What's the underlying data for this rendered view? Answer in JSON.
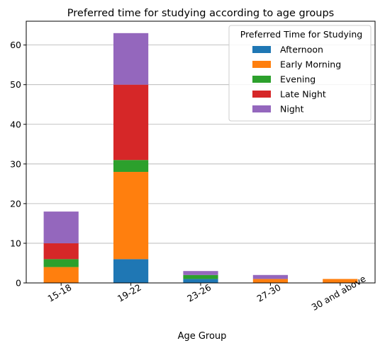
{
  "chart_data": {
    "type": "bar",
    "stacked": true,
    "title": "Preferred time for studying according to age groups",
    "xlabel": "Age Group",
    "ylabel": "",
    "categories": [
      "15-18",
      "19-22",
      "23-26",
      "27-30",
      "30 and above"
    ],
    "ylim": [
      0,
      66
    ],
    "yticks": [
      0,
      10,
      20,
      30,
      40,
      50,
      60
    ],
    "grid": "horizontal",
    "legend": {
      "title": "Preferred Time for Studying",
      "placement": "top-right"
    },
    "series": [
      {
        "name": "Afternoon",
        "color": "#1f77b4",
        "values": [
          0,
          6,
          1,
          0,
          0
        ]
      },
      {
        "name": "Early Morning",
        "color": "#ff7f0e",
        "values": [
          4,
          22,
          0,
          1,
          1
        ]
      },
      {
        "name": "Evening",
        "color": "#2ca02c",
        "values": [
          2,
          3,
          1,
          0,
          0
        ]
      },
      {
        "name": "Late Night",
        "color": "#d62728",
        "values": [
          4,
          19,
          0,
          0,
          0
        ]
      },
      {
        "name": "Night",
        "color": "#9467bd",
        "values": [
          8,
          13,
          1,
          1,
          0
        ]
      }
    ]
  }
}
